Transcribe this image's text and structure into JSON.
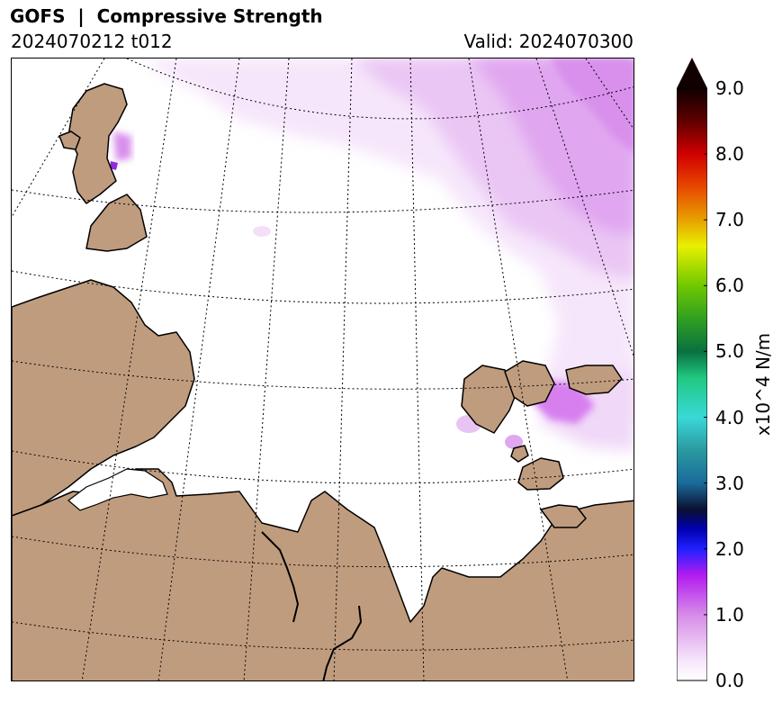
{
  "header": {
    "title": "GOFS  |  Compressive Strength",
    "run": "2024070212 t012",
    "valid": "Valid: 2024070300"
  },
  "colorbar": {
    "label": "x10^4 N/m",
    "min": 0.0,
    "max": 9.0,
    "extend": "max",
    "ticks": [
      "0.0",
      "1.0",
      "2.0",
      "3.0",
      "4.0",
      "5.0",
      "6.0",
      "7.0",
      "8.0",
      "9.0"
    ],
    "stops": [
      {
        "v": 0.0,
        "c": "#ffffff"
      },
      {
        "v": 0.3,
        "c": "#f6e6fb"
      },
      {
        "v": 1.0,
        "c": "#d68be8"
      },
      {
        "v": 1.6,
        "c": "#b21cf0"
      },
      {
        "v": 2.0,
        "c": "#2020ff"
      },
      {
        "v": 2.3,
        "c": "#0000b0"
      },
      {
        "v": 2.6,
        "c": "#0a1030"
      },
      {
        "v": 3.0,
        "c": "#1a6a9a"
      },
      {
        "v": 3.5,
        "c": "#2a9aa0"
      },
      {
        "v": 4.0,
        "c": "#3ad8d8"
      },
      {
        "v": 4.6,
        "c": "#20c880"
      },
      {
        "v": 5.0,
        "c": "#0a7040"
      },
      {
        "v": 5.5,
        "c": "#30a020"
      },
      {
        "v": 6.0,
        "c": "#70c800"
      },
      {
        "v": 6.6,
        "c": "#e8f000"
      },
      {
        "v": 7.0,
        "c": "#e8a000"
      },
      {
        "v": 7.5,
        "c": "#e84800"
      },
      {
        "v": 8.0,
        "c": "#d00000"
      },
      {
        "v": 8.5,
        "c": "#600000"
      },
      {
        "v": 9.0,
        "c": "#100000"
      }
    ]
  },
  "map": {
    "land_color": "#c09c7e",
    "ocean_color": "#ffffff",
    "coast_color": "#000000",
    "grid": "dotted meridians and parallels",
    "field": "sea ice compressive strength"
  }
}
